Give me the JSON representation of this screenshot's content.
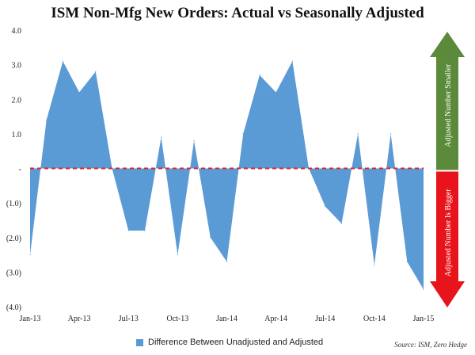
{
  "chart_data": {
    "type": "area",
    "title": "ISM Non-Mfg New Orders: Actual vs Seasonally Adjusted",
    "source": "Source: ISM, Zero Hedge",
    "ylim": [
      -4.0,
      4.0
    ],
    "y_ticks": [
      {
        "value": 4.0,
        "label": "4.0"
      },
      {
        "value": 3.0,
        "label": "3.0"
      },
      {
        "value": 2.0,
        "label": "2.0"
      },
      {
        "value": 1.0,
        "label": "1.0"
      },
      {
        "value": 0.0,
        "label": "-"
      },
      {
        "value": -1.0,
        "label": "(1.0)"
      },
      {
        "value": -2.0,
        "label": "(2.0)"
      },
      {
        "value": -3.0,
        "label": "(3.0)"
      },
      {
        "value": -4.0,
        "label": "(4.0)"
      }
    ],
    "x_labels": [
      {
        "index": 0,
        "label": "Jan-13"
      },
      {
        "index": 3,
        "label": "Apr-13"
      },
      {
        "index": 6,
        "label": "Jul-13"
      },
      {
        "index": 9,
        "label": "Oct-13"
      },
      {
        "index": 12,
        "label": "Jan-14"
      },
      {
        "index": 15,
        "label": "Apr-14"
      },
      {
        "index": 18,
        "label": "Jul-14"
      },
      {
        "index": 21,
        "label": "Oct-14"
      },
      {
        "index": 24,
        "label": "Jan-15"
      }
    ],
    "series": [
      {
        "name": "Difference Between Unadjusted and Adjusted",
        "color": "#5b9bd5",
        "points": [
          {
            "x": 0,
            "y": -2.5
          },
          {
            "x": 1,
            "y": 1.4
          },
          {
            "x": 2,
            "y": 3.1
          },
          {
            "x": 3,
            "y": 2.2
          },
          {
            "x": 4,
            "y": 2.8
          },
          {
            "x": 5,
            "y": 0.0
          },
          {
            "x": 6,
            "y": -1.8
          },
          {
            "x": 7,
            "y": -1.8
          },
          {
            "x": 8,
            "y": 0.9
          },
          {
            "x": 9,
            "y": -2.5
          },
          {
            "x": 10,
            "y": 0.8
          },
          {
            "x": 11,
            "y": -2.0
          },
          {
            "x": 12,
            "y": -2.7
          },
          {
            "x": 13,
            "y": 1.0
          },
          {
            "x": 14,
            "y": 2.7
          },
          {
            "x": 15,
            "y": 2.2
          },
          {
            "x": 16,
            "y": 3.1
          },
          {
            "x": 17,
            "y": 0.0
          },
          {
            "x": 18,
            "y": -1.1
          },
          {
            "x": 19,
            "y": -1.6
          },
          {
            "x": 20,
            "y": 1.0
          },
          {
            "x": 21,
            "y": -2.8
          },
          {
            "x": 22,
            "y": 1.0
          },
          {
            "x": 23,
            "y": -2.7
          },
          {
            "x": 24,
            "y": -3.5
          }
        ]
      }
    ],
    "annotations": {
      "upper_arrow": {
        "text": "Adjusted Number Smaller",
        "color": "#5b8a3a"
      },
      "lower_arrow": {
        "text": "Adjusted Number Is Bigger",
        "color": "#e8141c"
      }
    },
    "zero_line_color": "#d9252a",
    "grid": false,
    "legend_position": "bottom"
  }
}
